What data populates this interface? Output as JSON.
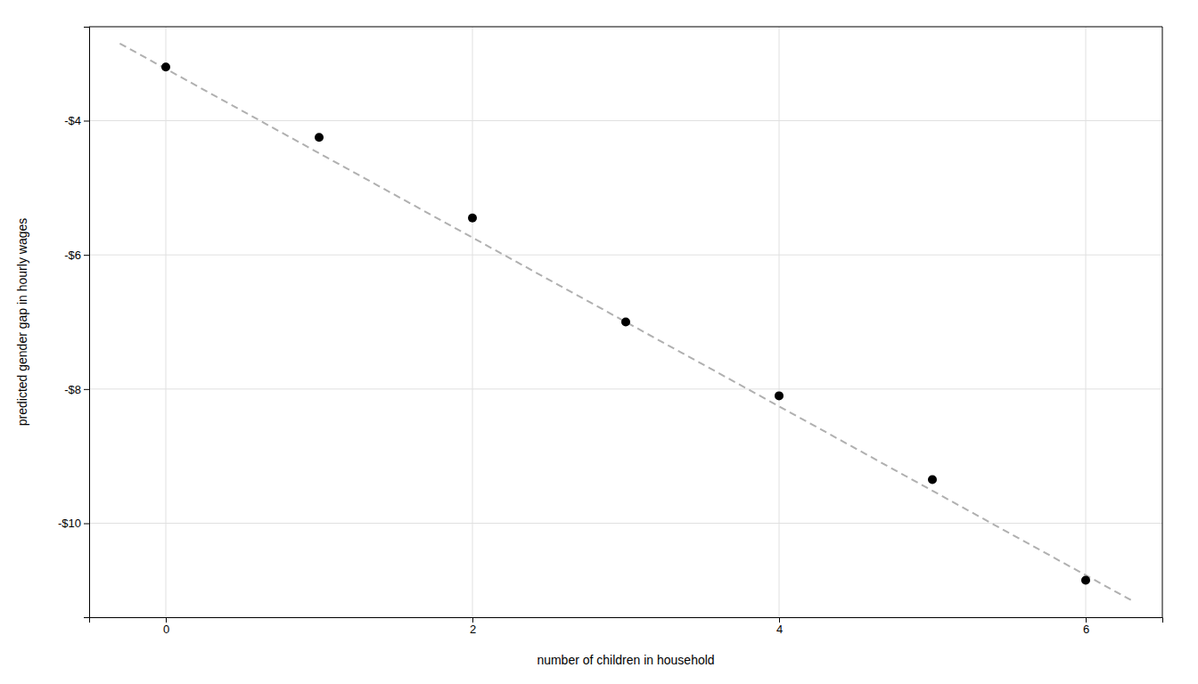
{
  "chart_data": {
    "type": "scatter",
    "xlabel": "number of children in household",
    "ylabel": "predicted gender gap in hourly wages",
    "series": [
      {
        "type": "line",
        "x": [
          -0.3,
          6.3
        ],
        "values": [
          -2.85,
          -11.15
        ],
        "color": "#b0b0b0",
        "line_style": "dashed"
      },
      {
        "type": "scatter",
        "x": [
          0,
          1,
          2,
          3,
          4,
          5,
          6
        ],
        "values": [
          -3.2,
          -4.25,
          -5.45,
          -7.0,
          -8.1,
          -9.35,
          -10.85
        ],
        "color": "#000000"
      }
    ],
    "xlim": [
      -0.5,
      6.5
    ],
    "ylim": [
      -11.4,
      -2.6
    ],
    "xticks": [
      0,
      2,
      4,
      6
    ],
    "yticks": [
      {
        "value": -4,
        "label": "-$4"
      },
      {
        "value": -6,
        "label": "-$6"
      },
      {
        "value": -8,
        "label": "-$8"
      },
      {
        "value": -10,
        "label": "-$10"
      }
    ],
    "grid": true
  }
}
